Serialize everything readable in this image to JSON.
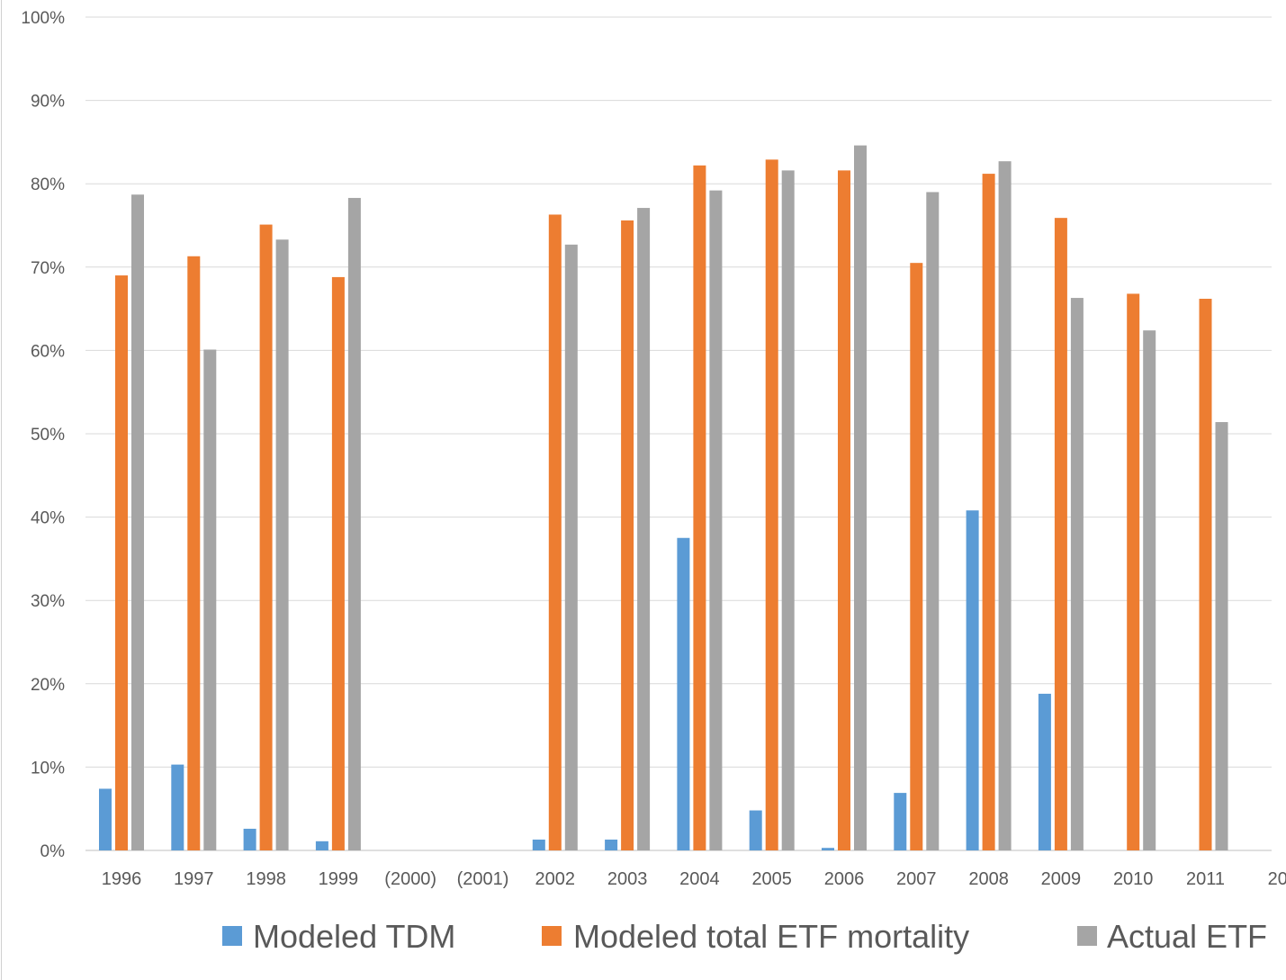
{
  "chart_data": {
    "type": "bar",
    "title": "",
    "xlabel": "",
    "ylabel": "",
    "ylim": [
      0,
      1
    ],
    "y_ticks": [
      "0%",
      "10%",
      "20%",
      "30%",
      "40%",
      "50%",
      "60%",
      "70%",
      "80%",
      "90%",
      "100%"
    ],
    "categories": [
      "1996",
      "1997",
      "1998",
      "1999",
      "(2000)",
      "(2001)",
      "2002",
      "2003",
      "2004",
      "2005",
      "2006",
      "2007",
      "2008",
      "2009",
      "2010",
      "2011",
      "2012"
    ],
    "category_labels": [
      "1996",
      "1997",
      "1998",
      "1999",
      "(2000)",
      "(2001)",
      "2002",
      "2003",
      "2004",
      "2005",
      "2006",
      "2007",
      "2008",
      "2009",
      "2010",
      "2011",
      "20"
    ],
    "grid": true,
    "legend_position": "bottom",
    "series": [
      {
        "name": "Modeled TDM",
        "color": "#5b9bd5",
        "values": [
          0.074,
          0.103,
          0.026,
          0.011,
          null,
          null,
          0.013,
          0.013,
          0.375,
          0.048,
          0.003,
          0.069,
          0.408,
          0.188,
          null,
          null,
          null
        ]
      },
      {
        "name": "Modeled total ETF mortality",
        "color": "#ed7d31",
        "values": [
          0.69,
          0.713,
          0.751,
          0.688,
          null,
          null,
          0.763,
          0.756,
          0.822,
          0.829,
          0.816,
          0.705,
          0.812,
          0.759,
          0.668,
          0.662,
          null
        ]
      },
      {
        "name": "Actual ETF",
        "color": "#a5a5a5",
        "values": [
          0.787,
          0.601,
          0.733,
          0.783,
          null,
          null,
          0.727,
          0.771,
          0.792,
          0.816,
          0.846,
          0.79,
          0.827,
          0.663,
          0.624,
          0.514,
          null
        ]
      }
    ]
  }
}
